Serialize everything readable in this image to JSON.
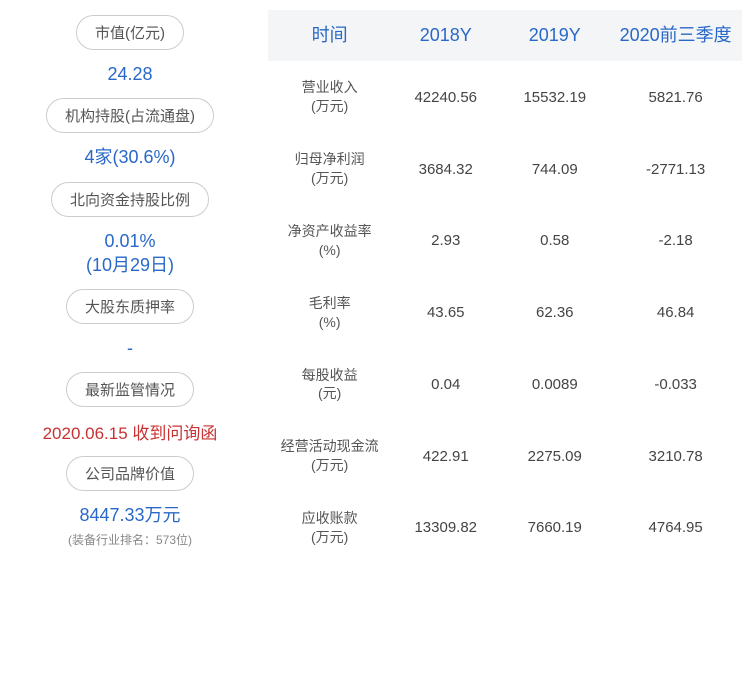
{
  "left_cards": [
    {
      "label": "市值(亿元)",
      "value": "24.28",
      "value_color": "#2968c8"
    },
    {
      "label": "机构持股(占流通盘)",
      "value": "4家(30.6%)",
      "value_color": "#2968c8"
    },
    {
      "label": "北向资金持股比例",
      "value": "0.01%\n(10月29日)",
      "value_color": "#2968c8"
    },
    {
      "label": "大股东质押率",
      "value": "-",
      "value_color": "#2968c8"
    },
    {
      "label": "最新监管情况",
      "value": "2020.06.15 收到问询函",
      "value_color": "#c83232"
    },
    {
      "label": "公司品牌价值",
      "value": "8447.33万元",
      "value_color": "#2968c8",
      "subnote": "(装备行业排名：573位)"
    }
  ],
  "table": {
    "headers": [
      "时间",
      "2018Y",
      "2019Y",
      "2020前三季度"
    ],
    "rows": [
      {
        "label": "营业收入\n(万元)",
        "v2018": "42240.56",
        "v2019": "15532.19",
        "v2020": "5821.76"
      },
      {
        "label": "归母净利润\n(万元)",
        "v2018": "3684.32",
        "v2019": "744.09",
        "v2020": "-2771.13"
      },
      {
        "label": "净资产收益率\n(%)",
        "v2018": "2.93",
        "v2019": "0.58",
        "v2020": "-2.18"
      },
      {
        "label": "毛利率\n(%)",
        "v2018": "43.65",
        "v2019": "62.36",
        "v2020": "46.84"
      },
      {
        "label": "每股收益\n(元)",
        "v2018": "0.04",
        "v2019": "0.0089",
        "v2020": "-0.033"
      },
      {
        "label": "经营活动现金流\n(万元)",
        "v2018": "422.91",
        "v2019": "2275.09",
        "v2020": "3210.78"
      },
      {
        "label": "应收账款\n(万元)",
        "v2018": "13309.82",
        "v2019": "7660.19",
        "v2020": "4764.95"
      }
    ],
    "header_bg": "#f4f5f7",
    "header_color": "#2968c8",
    "cell_color": "#444444",
    "label_color": "#555555",
    "background_color": "#ffffff"
  },
  "styling": {
    "pill_border_color": "#cccccc",
    "pill_text_color": "#555555",
    "value_blue": "#2968c8",
    "value_red": "#c83232",
    "subnote_color": "#888888",
    "font_family": "Microsoft YaHei",
    "header_fontsize": 18,
    "cell_fontsize": 15,
    "pill_fontsize": 15,
    "value_fontsize": 18
  }
}
